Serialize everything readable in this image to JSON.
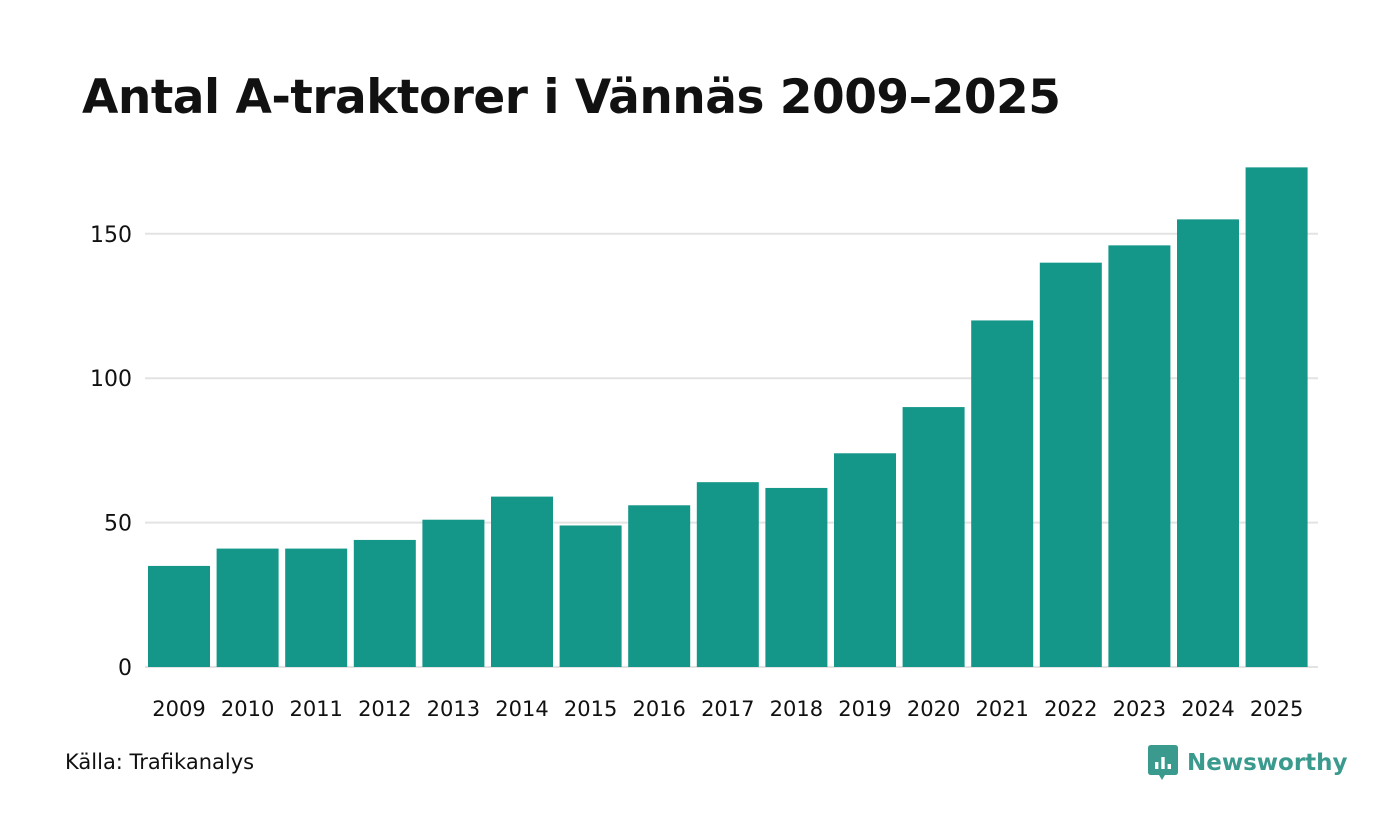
{
  "colors": {
    "bar": "#149688",
    "grid": "#e3e3e3",
    "text": "#111111",
    "brand": "#3a9a8e"
  },
  "chart_data": {
    "type": "bar",
    "title": "Antal A-traktorer i Vännäs 2009–2025",
    "xlabel": "",
    "ylabel": "",
    "categories": [
      "2009",
      "2010",
      "2011",
      "2012",
      "2013",
      "2014",
      "2015",
      "2016",
      "2017",
      "2018",
      "2019",
      "2020",
      "2021",
      "2022",
      "2023",
      "2024",
      "2025"
    ],
    "values": [
      35,
      41,
      41,
      44,
      51,
      59,
      49,
      56,
      64,
      62,
      74,
      90,
      120,
      140,
      146,
      155,
      173
    ],
    "yticks": [
      0,
      50,
      100,
      150
    ],
    "ylim": [
      0,
      175
    ],
    "grid": true,
    "legend": "none"
  },
  "footer": {
    "source": "Källa: Trafikanalys",
    "brand": "Newsworthy"
  }
}
